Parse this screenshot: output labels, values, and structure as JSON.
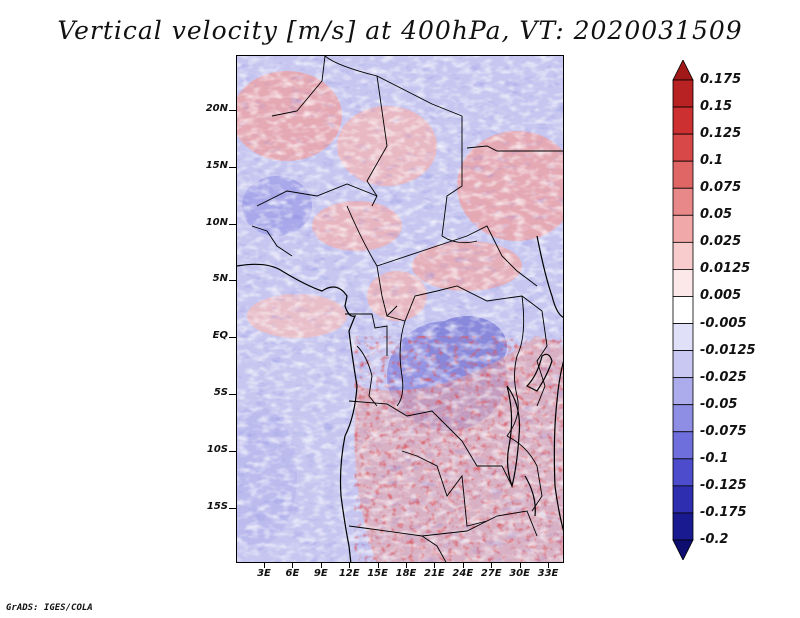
{
  "title": "Vertical velocity [m/s] at 400hPa, VT: 2020031509",
  "credit": "GrADS: IGES/COLA",
  "map": {
    "latitude_labels": [
      "20N",
      "15N",
      "10N",
      "5N",
      "EQ",
      "5S",
      "10S",
      "15S"
    ],
    "longitude_labels": [
      "3E",
      "6E",
      "9E",
      "12E",
      "15E",
      "18E",
      "21E",
      "24E",
      "27E",
      "30E",
      "33E"
    ],
    "lat_range": [
      -20,
      25
    ],
    "lon_range": [
      0,
      34.5
    ]
  },
  "colorbar": {
    "labels": [
      "0.175",
      "0.15",
      "0.125",
      "0.1",
      "0.075",
      "0.05",
      "0.025",
      "0.0125",
      "0.005",
      "-0.005",
      "-0.0125",
      "-0.025",
      "-0.05",
      "-0.075",
      "-0.1",
      "-0.125",
      "-0.175",
      "-0.2"
    ],
    "colors": [
      "#a01818",
      "#b82222",
      "#cc3030",
      "#d84848",
      "#e06666",
      "#e88888",
      "#f0a8a8",
      "#f8cccc",
      "#fce8e8",
      "#ffffff",
      "#e0e0f8",
      "#c8c8f2",
      "#acacec",
      "#8e8ee4",
      "#6e6edc",
      "#4c4ccc",
      "#2e2eb0",
      "#1a1a90",
      "#0e0e70"
    ]
  }
}
